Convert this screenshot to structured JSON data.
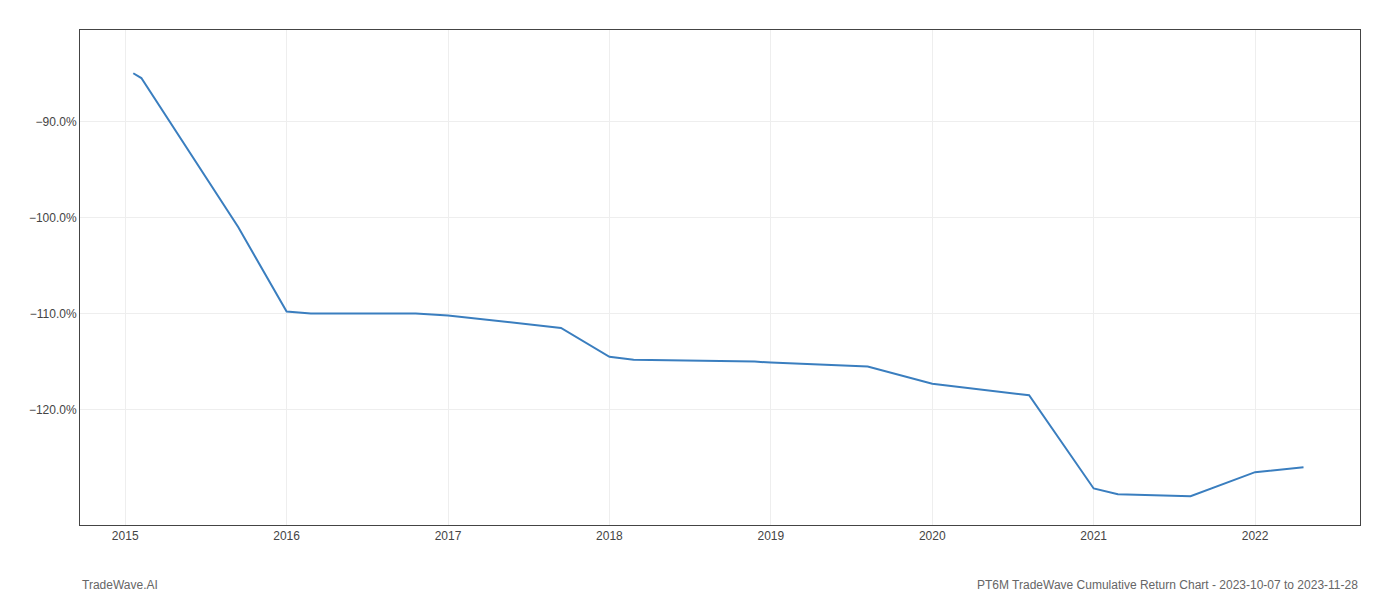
{
  "chart_data": {
    "type": "line",
    "x": [
      2015.05,
      2015.1,
      2015.7,
      2016.0,
      2016.15,
      2016.8,
      2017.0,
      2017.7,
      2018.0,
      2018.15,
      2018.9,
      2019.0,
      2019.6,
      2020.0,
      2020.6,
      2021.0,
      2021.15,
      2021.6,
      2022.0,
      2022.3
    ],
    "values": [
      -85.0,
      -85.5,
      -101.0,
      -109.8,
      -110.0,
      -110.0,
      -110.2,
      -111.5,
      -114.5,
      -114.8,
      -115.0,
      -115.1,
      -115.5,
      -117.3,
      -118.5,
      -128.2,
      -128.8,
      -129.0,
      -126.5,
      -126.0
    ],
    "color": "#3a7ebf",
    "xlim": [
      2014.72,
      2022.65
    ],
    "ylim": [
      -132.0,
      -80.5
    ],
    "xticks": [
      2015,
      2016,
      2017,
      2018,
      2019,
      2020,
      2021,
      2022
    ],
    "yticks": [
      {
        "value": -90.0,
        "label": "−90.0%"
      },
      {
        "value": -100.0,
        "label": "−100.0%"
      },
      {
        "value": -110.0,
        "label": "−110.0%"
      },
      {
        "value": -120.0,
        "label": "−120.0%"
      }
    ],
    "grid": true,
    "annotations": [
      "TradeWave.AI",
      "PT6M TradeWave Cumulative Return Chart - 2023-10-07 to 2023-11-28"
    ]
  }
}
